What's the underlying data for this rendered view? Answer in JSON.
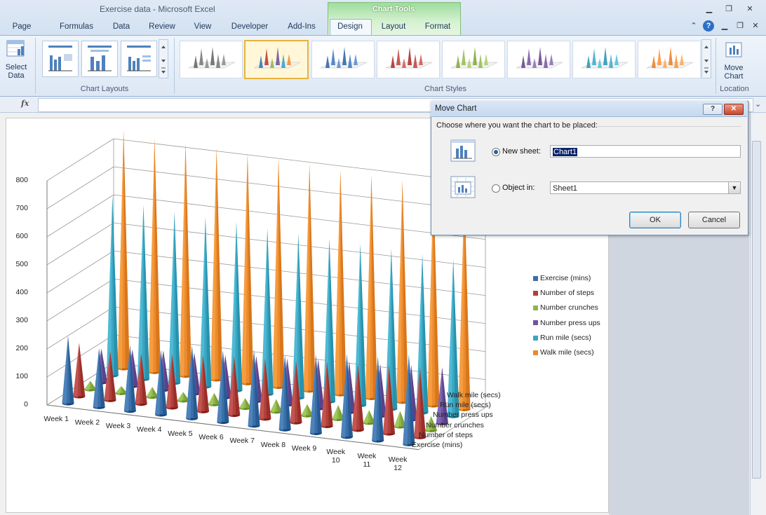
{
  "window": {
    "title": "Exercise data  -  Microsoft Excel",
    "contextual_group": "Chart Tools"
  },
  "tabs": [
    "Page Layout",
    "Formulas",
    "Data",
    "Review",
    "View",
    "Developer",
    "Add-Ins",
    "Design",
    "Layout",
    "Format"
  ],
  "active_tab": "Design",
  "ribbon": {
    "select_data_label_1": "Select",
    "select_data_label_2": "Data",
    "move_chart_label_1": "Move",
    "move_chart_label_2": "Chart",
    "groups": {
      "chart_layouts": "Chart Layouts",
      "chart_styles": "Chart Styles",
      "location": "Location"
    },
    "styles": [
      {
        "name": "gray",
        "color": "#7f7f7f"
      },
      {
        "name": "multi",
        "color": "#4f81bd"
      },
      {
        "name": "blue",
        "color": "#4f81bd"
      },
      {
        "name": "red",
        "color": "#c0504d"
      },
      {
        "name": "green",
        "color": "#9bbb59"
      },
      {
        "name": "purple",
        "color": "#8064a2"
      },
      {
        "name": "aqua",
        "color": "#4bacc6"
      },
      {
        "name": "orange",
        "color": "#f79646"
      }
    ]
  },
  "formula_bar": {
    "fx": "fx"
  },
  "chart_data": {
    "type": "bar",
    "categories": [
      "Week 1",
      "Week 2",
      "Week 3",
      "Week 4",
      "Week 5",
      "Week 6",
      "Week 7",
      "Week 8",
      "Week 9",
      "Week 10",
      "Week 11",
      "Week 12"
    ],
    "series": [
      {
        "name": "Exercise (mins)",
        "color": "#3a6fa8",
        "values": [
          240,
          210,
          235,
          230,
          260,
          255,
          270,
          265,
          280,
          295,
          300,
          320
        ]
      },
      {
        "name": "Number of steps",
        "color": "#b0423d",
        "values": [
          190,
          175,
          180,
          190,
          200,
          210,
          215,
          220,
          230,
          235,
          245,
          250
        ]
      },
      {
        "name": "Number crunches",
        "color": "#8fb64a",
        "values": [
          30,
          25,
          35,
          30,
          40,
          35,
          45,
          40,
          50,
          45,
          55,
          50
        ]
      },
      {
        "name": "Number press ups",
        "color": "#6f55a0",
        "values": [
          120,
          130,
          140,
          145,
          150,
          160,
          165,
          175,
          180,
          185,
          195,
          200
        ]
      },
      {
        "name": "Run mile (secs)",
        "color": "#3ba6c1",
        "values": [
          640,
          620,
          610,
          605,
          600,
          590,
          585,
          580,
          575,
          570,
          565,
          560
        ]
      },
      {
        "name": "Walk mile (secs)",
        "color": "#ec8a2e",
        "values": [
          850,
          835,
          830,
          825,
          820,
          815,
          810,
          800,
          795,
          790,
          785,
          780
        ]
      }
    ],
    "y_ticks": [
      "800",
      "700",
      "600",
      "500",
      "400",
      "300",
      "200",
      "100",
      "0"
    ],
    "ylim": [
      0,
      800
    ],
    "z_labels": [
      "Walk mile (secs)",
      "Run mile (secs)",
      "Number press ups",
      "Number crunches",
      "Number of steps",
      "Exercise (mins)"
    ],
    "legend_position": "right",
    "grid": true
  },
  "dialog": {
    "title": "Move Chart",
    "prompt": "Choose where you want the chart to be placed:",
    "new_sheet_label": "New sheet:",
    "new_sheet_value": "Chart1",
    "object_in_label": "Object in:",
    "object_in_value": "Sheet1",
    "ok": "OK",
    "cancel": "Cancel",
    "help": "?",
    "close": "✕"
  }
}
